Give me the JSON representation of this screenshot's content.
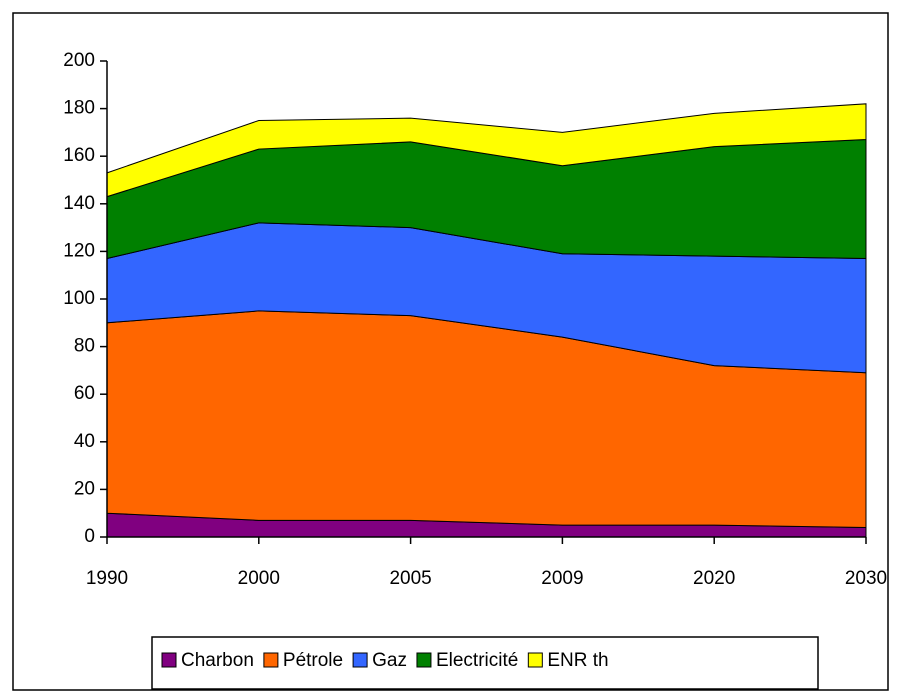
{
  "chart_data": {
    "type": "stacked_area",
    "categories": [
      "1990",
      "2000",
      "2005",
      "2009",
      "2020",
      "2030"
    ],
    "series": [
      {
        "name": "Charbon",
        "color": "#800080",
        "values": [
          10,
          7,
          7,
          5,
          5,
          4
        ]
      },
      {
        "name": "Pétrole",
        "color": "#ff6600",
        "values": [
          80,
          88,
          86,
          79,
          67,
          65
        ]
      },
      {
        "name": "Gaz",
        "color": "#3366ff",
        "values": [
          27,
          37,
          37,
          35,
          46,
          48
        ]
      },
      {
        "name": "Electricité",
        "color": "#008000",
        "values": [
          26,
          31,
          36,
          37,
          46,
          50
        ]
      },
      {
        "name": "ENR th",
        "color": "#ffff00",
        "values": [
          10,
          12,
          10,
          14,
          14,
          15
        ]
      }
    ],
    "ylim": [
      0,
      200
    ],
    "yticks": [
      0,
      20,
      40,
      60,
      80,
      100,
      120,
      140,
      160,
      180,
      200
    ],
    "legend": "bottom"
  }
}
